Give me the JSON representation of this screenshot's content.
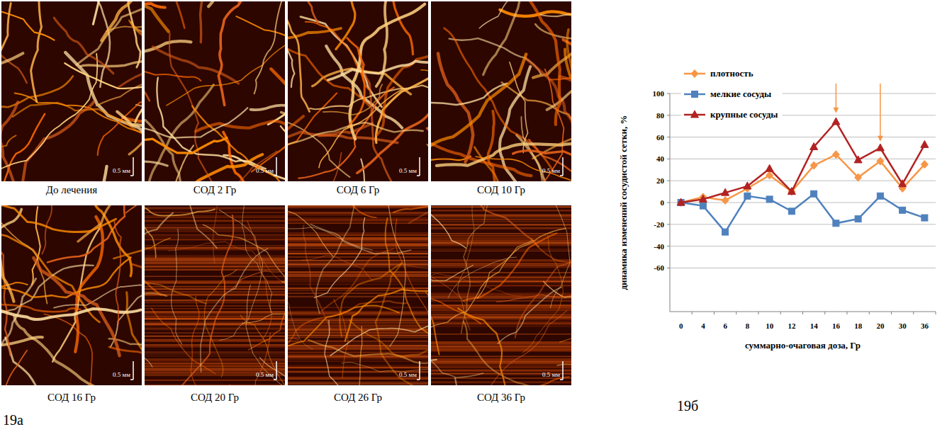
{
  "figure": {
    "panel_a": {
      "label": "19а",
      "images": [
        {
          "caption": "До лечения",
          "scale_bar": "0.5 мм"
        },
        {
          "caption": "СОД 2 Гр",
          "scale_bar": "0.5 мм"
        },
        {
          "caption": "СОД 6 Гр",
          "scale_bar": "0.5 мм"
        },
        {
          "caption": "СОД 10 Гр",
          "scale_bar": "0.5 мм"
        },
        {
          "caption": "СОД 16 Гр",
          "scale_bar": "0.5 мм"
        },
        {
          "caption": "СОД 20 Гр",
          "scale_bar": "0.5 мм"
        },
        {
          "caption": "СОД 26 Гр",
          "scale_bar": "0.5 мм"
        },
        {
          "caption": "СОД 36 Гр",
          "scale_bar": "0.5 мм"
        }
      ]
    },
    "panel_b": {
      "label": "19б"
    }
  },
  "chart_data": {
    "type": "line",
    "x_label": "суммарно-очаговая доза, Гр",
    "y_label": "динамика изменений сосудистой сетки, %",
    "categories": [
      "0",
      "4",
      "6",
      "8",
      "10",
      "12",
      "14",
      "16",
      "18",
      "20",
      "30",
      "36"
    ],
    "series": [
      {
        "name": "плотность",
        "color": "#f79646",
        "marker": "diamond",
        "values": [
          0,
          5,
          2,
          13,
          25,
          10,
          34,
          44,
          23,
          38,
          13,
          35
        ]
      },
      {
        "name": "мелкие сосуды",
        "color": "#4f81bd",
        "marker": "square",
        "values": [
          0,
          -3,
          -27,
          6,
          3,
          -8,
          8,
          -19,
          -15,
          6,
          -7,
          -14
        ]
      },
      {
        "name": "крупные сосуды",
        "color": "#b22222",
        "marker": "triangle",
        "values": [
          0,
          3,
          9,
          15,
          31,
          10,
          51,
          74,
          39,
          50,
          17,
          53
        ]
      }
    ],
    "ylim": [
      -100,
      100
    ],
    "yticks": [
      -60,
      -40,
      -20,
      0,
      20,
      40,
      60,
      80,
      100
    ],
    "grid": true,
    "legend": "top-left",
    "arrows": [
      {
        "x": "16",
        "from": 100,
        "to": 82,
        "color": "#f79646"
      },
      {
        "x": "20",
        "from": 100,
        "to": 56,
        "color": "#f79646"
      }
    ]
  }
}
